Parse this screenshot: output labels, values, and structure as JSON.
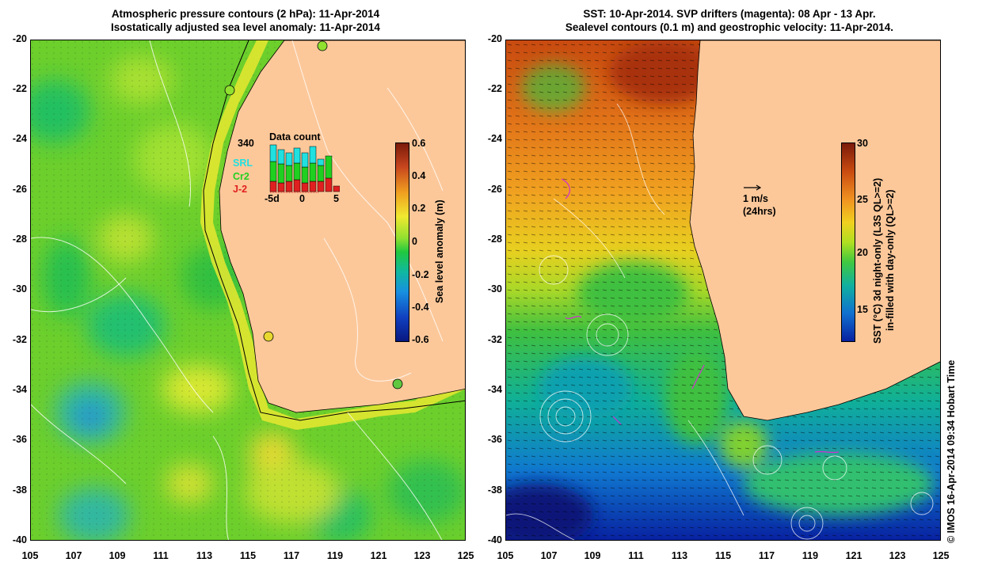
{
  "left_panel": {
    "title_line1": "Atmospheric pressure contours (2 hPa): 11-Apr-2014",
    "title_line2": "Isostatically adjusted sea level anomaly: 11-Apr-2014",
    "colorbar": {
      "title": "Sea level anomaly (m)",
      "ticks": [
        "0.6",
        "0.4",
        "0.2",
        "0",
        "-0.2",
        "-0.4",
        "-0.6"
      ],
      "colors": [
        "#7a1a0a",
        "#c8461e",
        "#f0a020",
        "#f0e830",
        "#90e030",
        "#20c840",
        "#10b8a0",
        "#1890e0",
        "#1040c0",
        "#081880"
      ]
    },
    "data_count": {
      "title": "Data count",
      "max_label": "340",
      "x_ticks": [
        "-5d",
        "0",
        "5"
      ],
      "legend": [
        {
          "label": "SRL",
          "color": "#20e0e0"
        },
        {
          "label": "Cr2",
          "color": "#20d020"
        },
        {
          "label": "J-2",
          "color": "#e02020"
        }
      ]
    }
  },
  "right_panel": {
    "title_line1": "SST: 10-Apr-2014. SVP drifters (magenta): 08 Apr - 13 Apr.",
    "title_line2": "Sealevel contours (0.1 m) and geostrophic velocity: 11-Apr-2014.",
    "colorbar": {
      "title_line1": "SST (°C)  3d night-only (L3S QL>=2)",
      "title_line2": "in-filled with day-only (QL>=2)",
      "ticks": [
        "30",
        "25",
        "20",
        "15"
      ],
      "colors": [
        "#7a1a0a",
        "#c84a10",
        "#f09020",
        "#f0d020",
        "#b0e020",
        "#40c840",
        "#10b0a0",
        "#1070d0",
        "#0820a0"
      ]
    },
    "velocity_scale": {
      "label": "1 m/s",
      "sub_label": "(24hrs)"
    }
  },
  "axes": {
    "lat_labels": [
      "-20",
      "-22",
      "-24",
      "-26",
      "-28",
      "-30",
      "-32",
      "-34",
      "-36",
      "-38",
      "-40"
    ],
    "lon_labels": [
      "105",
      "107",
      "109",
      "111",
      "113",
      "115",
      "117",
      "119",
      "121",
      "123",
      "125"
    ]
  },
  "copyright": "© IMOS 16-Apr-2014 09:34 Hobart Time",
  "colors": {
    "land": "#fcc89a",
    "ocean_left": "#60cc30",
    "ocean_right_warm": "#d86010"
  }
}
